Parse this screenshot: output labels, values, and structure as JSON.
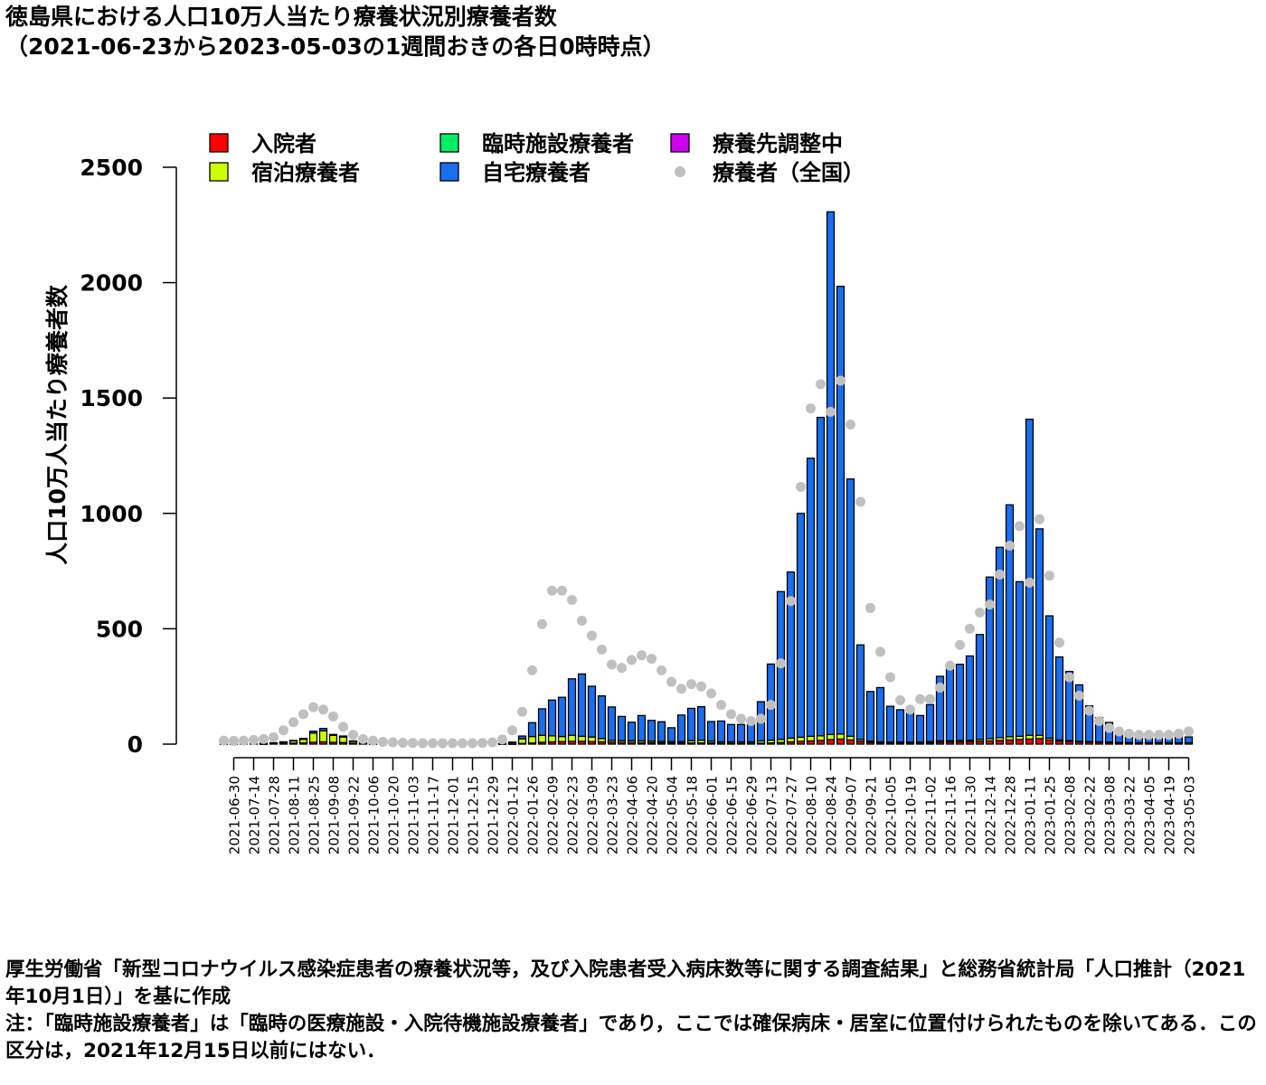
{
  "title": {
    "line1": "徳島県における人口10万人当たり療養状況別療養者数",
    "line2": "（2021-06-23から2023-05-03の1週間おきの各日0時時点）"
  },
  "chart_data": {
    "type": "bar",
    "stacked": true,
    "ylabel": "人口10万人当たり療養者数",
    "xlabel": "",
    "ylim": [
      0,
      2500
    ],
    "yticks": [
      0,
      500,
      1000,
      1500,
      2000,
      2500
    ],
    "legend_placement": "top",
    "legend": [
      {
        "label": "入院者",
        "color": "#ff0000",
        "shape": "square"
      },
      {
        "label": "臨時施設療養者",
        "color": "#00ee66",
        "shape": "square"
      },
      {
        "label": "療養先調整中",
        "color": "#cc00ee",
        "shape": "square"
      },
      {
        "label": "宿泊療養者",
        "color": "#ccff00",
        "shape": "square"
      },
      {
        "label": "自宅療養者",
        "color": "#1a6ef0",
        "shape": "square"
      },
      {
        "label": "療養者（全国）",
        "color": "#c0c0c0",
        "shape": "dot"
      }
    ],
    "categories": [
      "2021-06-23",
      "2021-06-30",
      "2021-07-07",
      "2021-07-14",
      "2021-07-21",
      "2021-07-28",
      "2021-08-04",
      "2021-08-11",
      "2021-08-18",
      "2021-08-25",
      "2021-09-01",
      "2021-09-08",
      "2021-09-15",
      "2021-09-22",
      "2021-09-29",
      "2021-10-06",
      "2021-10-13",
      "2021-10-20",
      "2021-10-27",
      "2021-11-03",
      "2021-11-10",
      "2021-11-17",
      "2021-11-24",
      "2021-12-01",
      "2021-12-08",
      "2021-12-15",
      "2021-12-22",
      "2021-12-29",
      "2022-01-05",
      "2022-01-12",
      "2022-01-19",
      "2022-01-26",
      "2022-02-02",
      "2022-02-09",
      "2022-02-16",
      "2022-02-23",
      "2022-03-02",
      "2022-03-09",
      "2022-03-16",
      "2022-03-23",
      "2022-03-30",
      "2022-04-06",
      "2022-04-13",
      "2022-04-20",
      "2022-04-27",
      "2022-05-04",
      "2022-05-11",
      "2022-05-18",
      "2022-05-25",
      "2022-06-01",
      "2022-06-08",
      "2022-06-15",
      "2022-06-22",
      "2022-06-29",
      "2022-07-06",
      "2022-07-13",
      "2022-07-20",
      "2022-07-27",
      "2022-08-03",
      "2022-08-10",
      "2022-08-17",
      "2022-08-24",
      "2022-08-31",
      "2022-09-07",
      "2022-09-14",
      "2022-09-21",
      "2022-09-28",
      "2022-10-05",
      "2022-10-12",
      "2022-10-19",
      "2022-10-26",
      "2022-11-02",
      "2022-11-09",
      "2022-11-16",
      "2022-11-23",
      "2022-11-30",
      "2022-12-07",
      "2022-12-14",
      "2022-12-21",
      "2022-12-28",
      "2023-01-04",
      "2023-01-11",
      "2023-01-18",
      "2023-01-25",
      "2023-02-01",
      "2023-02-08",
      "2023-02-15",
      "2023-02-22",
      "2023-03-01",
      "2023-03-08",
      "2023-03-15",
      "2023-03-22",
      "2023-03-29",
      "2023-04-05",
      "2023-04-12",
      "2023-04-19",
      "2023-04-26",
      "2023-05-03"
    ],
    "tick_labels": [
      "2021-06-30",
      "2021-07-14",
      "2021-07-28",
      "2021-08-11",
      "2021-08-25",
      "2021-09-08",
      "2021-09-22",
      "2021-10-06",
      "2021-10-20",
      "2021-11-03",
      "2021-11-17",
      "2021-12-01",
      "2021-12-15",
      "2021-12-29",
      "2022-01-12",
      "2022-01-26",
      "2022-02-09",
      "2022-02-23",
      "2022-03-09",
      "2022-03-23",
      "2022-04-06",
      "2022-04-20",
      "2022-05-04",
      "2022-05-18",
      "2022-06-01",
      "2022-06-15",
      "2022-06-29",
      "2022-07-13",
      "2022-07-27",
      "2022-08-10",
      "2022-08-24",
      "2022-09-07",
      "2022-09-21",
      "2022-10-05",
      "2022-10-19",
      "2022-11-02",
      "2022-11-16",
      "2022-11-30",
      "2022-12-14",
      "2022-12-28",
      "2023-01-11",
      "2023-01-25",
      "2023-02-08",
      "2023-02-22",
      "2023-03-08",
      "2023-03-22",
      "2023-04-05",
      "2023-04-19",
      "2023-05-03"
    ],
    "series": [
      {
        "name": "入院者",
        "color": "#ff0000",
        "values": [
          0,
          0,
          0,
          0,
          1,
          2,
          3,
          4,
          5,
          8,
          10,
          8,
          7,
          4,
          2,
          1,
          0,
          0,
          0,
          0,
          0,
          0,
          0,
          0,
          0,
          0,
          0,
          0,
          1,
          1,
          3,
          5,
          8,
          10,
          11,
          12,
          12,
          11,
          10,
          8,
          7,
          7,
          6,
          6,
          6,
          5,
          5,
          5,
          5,
          5,
          4,
          4,
          4,
          4,
          4,
          5,
          7,
          10,
          12,
          14,
          16,
          20,
          22,
          18,
          12,
          8,
          6,
          5,
          5,
          5,
          5,
          6,
          8,
          9,
          10,
          11,
          12,
          14,
          16,
          18,
          20,
          22,
          24,
          18,
          14,
          12,
          10,
          9,
          8,
          7,
          6,
          6,
          5,
          5,
          5,
          5,
          5,
          5
        ]
      },
      {
        "name": "宿泊療養者",
        "color": "#ccff00",
        "values": [
          1,
          1,
          2,
          2,
          3,
          4,
          6,
          10,
          16,
          40,
          48,
          30,
          24,
          8,
          4,
          2,
          0,
          0,
          0,
          0,
          0,
          0,
          0,
          0,
          0,
          0,
          0,
          0,
          2,
          6,
          20,
          28,
          30,
          26,
          22,
          26,
          22,
          20,
          14,
          8,
          8,
          8,
          8,
          7,
          6,
          6,
          6,
          10,
          12,
          8,
          6,
          6,
          6,
          6,
          10,
          12,
          14,
          16,
          18,
          20,
          20,
          22,
          22,
          16,
          8,
          5,
          4,
          4,
          4,
          4,
          4,
          5,
          6,
          6,
          6,
          6,
          8,
          10,
          12,
          14,
          14,
          16,
          14,
          8,
          4,
          3,
          2,
          2,
          2,
          2,
          1,
          1,
          1,
          1,
          1,
          1,
          1,
          1
        ]
      },
      {
        "name": "臨時施設療養者",
        "color": "#00ee66",
        "values": [
          0,
          0,
          0,
          0,
          0,
          0,
          0,
          0,
          0,
          0,
          0,
          0,
          0,
          0,
          0,
          0,
          0,
          0,
          0,
          0,
          0,
          0,
          0,
          0,
          0,
          0,
          0,
          0,
          0,
          0,
          0,
          0,
          0,
          0,
          0,
          0,
          0,
          0,
          0,
          0,
          0,
          0,
          0,
          0,
          0,
          0,
          0,
          0,
          0,
          0,
          0,
          0,
          0,
          0,
          0,
          0,
          0,
          0,
          0,
          0,
          0,
          0,
          0,
          0,
          0,
          0,
          0,
          0,
          0,
          0,
          0,
          0,
          0,
          0,
          0,
          0,
          0,
          0,
          0,
          0,
          0,
          0,
          0,
          0,
          0,
          0,
          0,
          0,
          0,
          0,
          0,
          0,
          0,
          0,
          0,
          0,
          0,
          0
        ]
      },
      {
        "name": "自宅療養者",
        "color": "#1a6ef0",
        "values": [
          0,
          0,
          0,
          0,
          0,
          0,
          1,
          2,
          4,
          8,
          10,
          4,
          4,
          2,
          1,
          0,
          0,
          0,
          0,
          0,
          0,
          0,
          0,
          0,
          0,
          0,
          0,
          0,
          0,
          2,
          12,
          60,
          115,
          155,
          170,
          245,
          270,
          220,
          185,
          145,
          105,
          80,
          110,
          90,
          85,
          60,
          115,
          140,
          145,
          85,
          90,
          75,
          75,
          75,
          170,
          330,
          640,
          720,
          970,
          1205,
          1380,
          2265,
          1940,
          1115,
          410,
          215,
          235,
          155,
          140,
          140,
          115,
          160,
          280,
          325,
          330,
          365,
          455,
          700,
          825,
          1005,
          670,
          1370,
          895,
          530,
          360,
          300,
          245,
          155,
          105,
          85,
          55,
          35,
          30,
          30,
          30,
          25,
          25,
          25
        ]
      },
      {
        "name": "療養先調整中",
        "color": "#cc00ee",
        "values": [
          0,
          0,
          0,
          0,
          0,
          0,
          0,
          0,
          0,
          0,
          0,
          0,
          0,
          0,
          0,
          0,
          0,
          0,
          0,
          0,
          0,
          0,
          0,
          0,
          0,
          0,
          0,
          0,
          0,
          0,
          0,
          0,
          0,
          0,
          0,
          0,
          0,
          0,
          0,
          0,
          0,
          0,
          0,
          0,
          0,
          0,
          0,
          0,
          0,
          0,
          0,
          0,
          0,
          0,
          0,
          0,
          0,
          0,
          0,
          0,
          0,
          0,
          0,
          0,
          0,
          0,
          0,
          0,
          0,
          0,
          0,
          0,
          0,
          0,
          0,
          0,
          0,
          0,
          0,
          0,
          0,
          0,
          0,
          0,
          0,
          0,
          0,
          0,
          0,
          0,
          0,
          0,
          0,
          0,
          0,
          0,
          0,
          0
        ]
      }
    ],
    "national": {
      "name": "療養者（全国）",
      "color": "#c0c0c0",
      "values": [
        15,
        14,
        15,
        18,
        22,
        30,
        60,
        95,
        130,
        160,
        150,
        120,
        75,
        40,
        22,
        15,
        10,
        8,
        6,
        5,
        4,
        4,
        4,
        4,
        4,
        4,
        5,
        8,
        20,
        60,
        140,
        320,
        520,
        665,
        665,
        625,
        535,
        470,
        410,
        345,
        330,
        365,
        385,
        370,
        320,
        270,
        240,
        260,
        250,
        220,
        170,
        130,
        110,
        100,
        110,
        170,
        350,
        620,
        1115,
        1455,
        1560,
        1440,
        1575,
        1385,
        1050,
        590,
        400,
        290,
        190,
        150,
        195,
        195,
        245,
        340,
        430,
        500,
        570,
        605,
        735,
        860,
        945,
        700,
        975,
        730,
        440,
        290,
        210,
        145,
        100,
        70,
        55,
        45,
        40,
        40,
        40,
        40,
        45,
        55
      ]
    }
  },
  "notes": {
    "source": "厚生労働省「新型コロナウイルス感染症患者の療養状況等，及び入院患者受入病床数等に関する調査結果」と総務省統計局「人口推計（2021年10月1日）」を基に作成",
    "note": "注：「臨時施設療養者」は「臨時の医療施設・入院待機施設療養者」であり，ここでは確保病床・居室に位置付けられたものを除いてある．この区分は，2021年12月15日以前にはない．"
  }
}
